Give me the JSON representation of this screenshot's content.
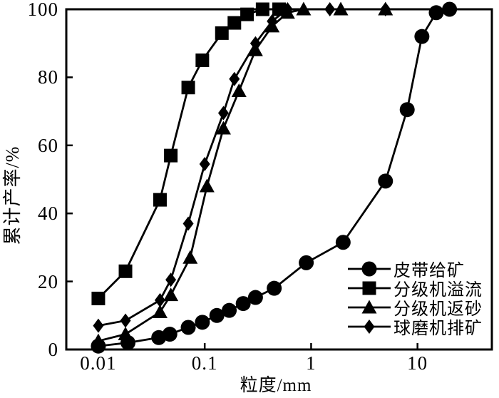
{
  "chart_data": {
    "type": "line",
    "title": "",
    "xlabel": "粒度/mm",
    "ylabel": "累计产率/%",
    "x_scale": "log",
    "xlim": [
      0.005,
      50
    ],
    "ylim": [
      0,
      100
    ],
    "grid": false,
    "legend_position": "inside-lower-right",
    "ink_color": "#000000",
    "background_color": "#ffffff",
    "x_ticks": [
      {
        "value": 0.01,
        "label": "0.01"
      },
      {
        "value": 0.1,
        "label": "0.1"
      },
      {
        "value": 1,
        "label": "1"
      },
      {
        "value": 10,
        "label": "10"
      }
    ],
    "y_ticks": [
      {
        "value": 0,
        "label": "0"
      },
      {
        "value": 20,
        "label": "20"
      },
      {
        "value": 40,
        "label": "40"
      },
      {
        "value": 60,
        "label": "60"
      },
      {
        "value": 80,
        "label": "80"
      },
      {
        "value": 100,
        "label": "100"
      }
    ],
    "series": [
      {
        "name": "皮带给矿",
        "marker": "circle",
        "color": "#000000",
        "points": [
          [
            0.01,
            1
          ],
          [
            0.019,
            2
          ],
          [
            0.037,
            3.5
          ],
          [
            0.047,
            4.5
          ],
          [
            0.07,
            6.5
          ],
          [
            0.095,
            8
          ],
          [
            0.13,
            10
          ],
          [
            0.17,
            11.5
          ],
          [
            0.23,
            13.5
          ],
          [
            0.3,
            15.3
          ],
          [
            0.45,
            18
          ],
          [
            0.9,
            25.5
          ],
          [
            2,
            31.5
          ],
          [
            5,
            49.5
          ],
          [
            8,
            70.5
          ],
          [
            11,
            92
          ],
          [
            15,
            99
          ],
          [
            20,
            100
          ]
        ]
      },
      {
        "name": "分级机溢流",
        "marker": "square",
        "color": "#000000",
        "points": [
          [
            0.01,
            15
          ],
          [
            0.018,
            23
          ],
          [
            0.038,
            44
          ],
          [
            0.048,
            57
          ],
          [
            0.07,
            77
          ],
          [
            0.095,
            85
          ],
          [
            0.145,
            93
          ],
          [
            0.19,
            96
          ],
          [
            0.25,
            98.5
          ],
          [
            0.35,
            100
          ],
          [
            0.5,
            100
          ]
        ]
      },
      {
        "name": "分级机返砂",
        "marker": "triangle",
        "color": "#000000",
        "points": [
          [
            0.01,
            2.5
          ],
          [
            0.018,
            4.5
          ],
          [
            0.038,
            11
          ],
          [
            0.048,
            16
          ],
          [
            0.073,
            27
          ],
          [
            0.105,
            48
          ],
          [
            0.15,
            65
          ],
          [
            0.21,
            76
          ],
          [
            0.3,
            88
          ],
          [
            0.43,
            95
          ],
          [
            0.6,
            99
          ],
          [
            0.85,
            100
          ],
          [
            1.9,
            100
          ],
          [
            5,
            100
          ]
        ]
      },
      {
        "name": "球磨机排矿",
        "marker": "diamond",
        "color": "#000000",
        "points": [
          [
            0.01,
            7
          ],
          [
            0.018,
            8.5
          ],
          [
            0.038,
            14.5
          ],
          [
            0.048,
            20.5
          ],
          [
            0.07,
            37
          ],
          [
            0.1,
            54.5
          ],
          [
            0.15,
            69.5
          ],
          [
            0.19,
            79.5
          ],
          [
            0.3,
            90
          ],
          [
            0.43,
            96.5
          ],
          [
            0.6,
            100
          ],
          [
            1.5,
            100
          ],
          [
            5,
            100
          ]
        ]
      }
    ]
  }
}
